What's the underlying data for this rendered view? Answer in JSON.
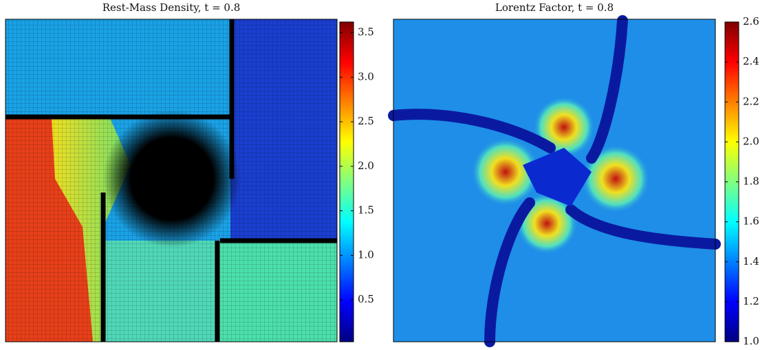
{
  "chart_data": [
    {
      "type": "heatmap",
      "title": "Rest-Mass Density, t = 0.8",
      "colormap": "jet",
      "clim": [
        0.03,
        3.62
      ],
      "cticks": [
        0.5,
        {
          "value": 1,
          "label": "1.0"
        },
        1.5,
        {
          "value": 2,
          "label": "2.0"
        },
        2.5,
        {
          "value": 3,
          "label": "3.0"
        },
        3.5
      ]
    },
    {
      "type": "heatmap",
      "title": "Lorentz Factor, t = 0.8",
      "colormap": "jet",
      "clim": [
        1.0,
        2.6
      ],
      "cticks": [
        {
          "value": 1,
          "label": "1.0"
        },
        1.2,
        1.4,
        1.6,
        1.8,
        {
          "value": 2,
          "label": "2.0"
        },
        2.2,
        2.4,
        2.6
      ]
    }
  ]
}
